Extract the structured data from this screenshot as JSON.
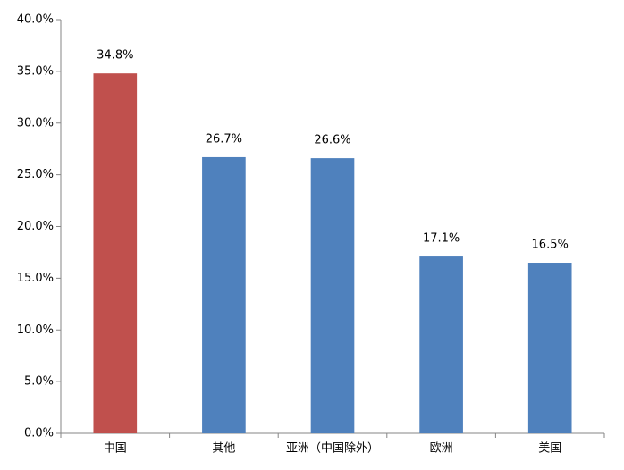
{
  "chart_data": {
    "type": "bar",
    "categories": [
      "中国",
      "其他",
      "亚洲（中国除外）",
      "欧洲",
      "美国"
    ],
    "values": [
      34.8,
      26.7,
      26.6,
      17.1,
      16.5
    ],
    "value_labels": [
      "34.8%",
      "26.7%",
      "26.6%",
      "17.1%",
      "16.5%"
    ],
    "colors": [
      "#c0504d",
      "#4f81bd",
      "#4f81bd",
      "#4f81bd",
      "#4f81bd"
    ],
    "ylim": [
      0,
      40
    ],
    "yticks": [
      {
        "value": 0,
        "label": "0.0%"
      },
      {
        "value": 5,
        "label": "5.0%"
      },
      {
        "value": 10,
        "label": "10.0%"
      },
      {
        "value": 15,
        "label": "15.0%"
      },
      {
        "value": 20,
        "label": "20.0%"
      },
      {
        "value": 25,
        "label": "25.0%"
      },
      {
        "value": 30,
        "label": "30.0%"
      },
      {
        "value": 35,
        "label": "35.0%"
      },
      {
        "value": 40,
        "label": "40.0%"
      }
    ],
    "grid": false
  }
}
